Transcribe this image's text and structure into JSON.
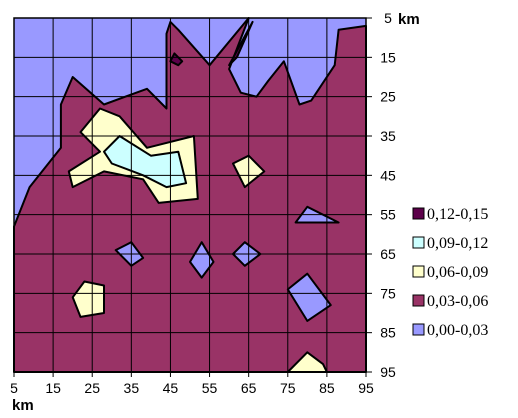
{
  "chart_data": {
    "type": "contour",
    "title": "",
    "x": {
      "label": "km",
      "ticks": [
        "5",
        "15",
        "25",
        "35",
        "45",
        "55",
        "65",
        "75",
        "85",
        "95"
      ],
      "range": [
        5,
        95
      ]
    },
    "y": {
      "label": "km",
      "ticks": [
        "5",
        "15",
        "25",
        "35",
        "45",
        "55",
        "65",
        "75",
        "85",
        "95"
      ],
      "range": [
        5,
        95
      ],
      "direction": "top-to-bottom"
    },
    "grid": true,
    "legend_position": "right",
    "bands": [
      {
        "label": "0,12-0,15",
        "color": "#5c004a"
      },
      {
        "label": "0,09-0,12",
        "color": "#ccffff"
      },
      {
        "label": "0,06-0,09",
        "color": "#ffffcc"
      },
      {
        "label": "0,03-0,06",
        "color": "#993366"
      },
      {
        "label": "0,00-0,03",
        "color": "#9999ff"
      }
    ],
    "regions": [
      {
        "band": "0,03-0,06",
        "points": [
          [
            5,
            58
          ],
          [
            9,
            48
          ],
          [
            17,
            38
          ],
          [
            17,
            27
          ],
          [
            20,
            20
          ],
          [
            28,
            27
          ],
          [
            39,
            23
          ],
          [
            44,
            28
          ],
          [
            44,
            9
          ],
          [
            45,
            6
          ],
          [
            47,
            8
          ],
          [
            55,
            17
          ],
          [
            65,
            5
          ],
          [
            60,
            18
          ],
          [
            63,
            24
          ],
          [
            67,
            25
          ],
          [
            70,
            21
          ],
          [
            74,
            16
          ],
          [
            78,
            27
          ],
          [
            81,
            26
          ],
          [
            87,
            17
          ],
          [
            88,
            8
          ],
          [
            95,
            7
          ],
          [
            95,
            95
          ],
          [
            5,
            95
          ]
        ]
      },
      {
        "band": "0,00-0,03",
        "points": [
          [
            77,
            57
          ],
          [
            80,
            53
          ],
          [
            88,
            57
          ]
        ]
      },
      {
        "band": "0,00-0,03",
        "points": [
          [
            75,
            74
          ],
          [
            80,
            70
          ],
          [
            86,
            78
          ],
          [
            80,
            82
          ]
        ]
      },
      {
        "band": "0,00-0,03",
        "points": [
          [
            31,
            64
          ],
          [
            35,
            62
          ],
          [
            38,
            66
          ],
          [
            35,
            68
          ]
        ]
      },
      {
        "band": "0,00-0,03",
        "points": [
          [
            50,
            67
          ],
          [
            53,
            62
          ],
          [
            56,
            67
          ],
          [
            53,
            71
          ]
        ]
      },
      {
        "band": "0,00-0,03",
        "points": [
          [
            61,
            65
          ],
          [
            64,
            62
          ],
          [
            68,
            65
          ],
          [
            64,
            68
          ]
        ]
      },
      {
        "band": "0,06-0,09",
        "points": [
          [
            22,
            34
          ],
          [
            27,
            28
          ],
          [
            32,
            30
          ],
          [
            39,
            38
          ],
          [
            51,
            35
          ],
          [
            52,
            51
          ],
          [
            42,
            52
          ],
          [
            38,
            46
          ],
          [
            28,
            44
          ],
          [
            20,
            48
          ],
          [
            19,
            44
          ],
          [
            27,
            39
          ]
        ]
      },
      {
        "band": "0,09-0,12",
        "points": [
          [
            28,
            39
          ],
          [
            32,
            35
          ],
          [
            40,
            40
          ],
          [
            47,
            39
          ],
          [
            49,
            47
          ],
          [
            44,
            48
          ],
          [
            38,
            45
          ],
          [
            30,
            42
          ]
        ]
      },
      {
        "band": "0,06-0,09",
        "points": [
          [
            61,
            42
          ],
          [
            65,
            40
          ],
          [
            69,
            44
          ],
          [
            64,
            48
          ]
        ]
      },
      {
        "band": "0,06-0,09",
        "points": [
          [
            20,
            76
          ],
          [
            23,
            72
          ],
          [
            28,
            73
          ],
          [
            28,
            80
          ],
          [
            22,
            81
          ]
        ]
      },
      {
        "band": "0,06-0,09",
        "points": [
          [
            75,
            95
          ],
          [
            80,
            90
          ],
          [
            84,
            93
          ],
          [
            85,
            95
          ]
        ]
      },
      {
        "band": "0,12-0,15",
        "points": [
          [
            46,
            14
          ],
          [
            48,
            16
          ],
          [
            47,
            17
          ],
          [
            45,
            16
          ]
        ]
      },
      {
        "band": "0,12-0,15",
        "points": [
          [
            60,
            17
          ],
          [
            66,
            6
          ],
          [
            62,
            15
          ]
        ]
      }
    ]
  }
}
